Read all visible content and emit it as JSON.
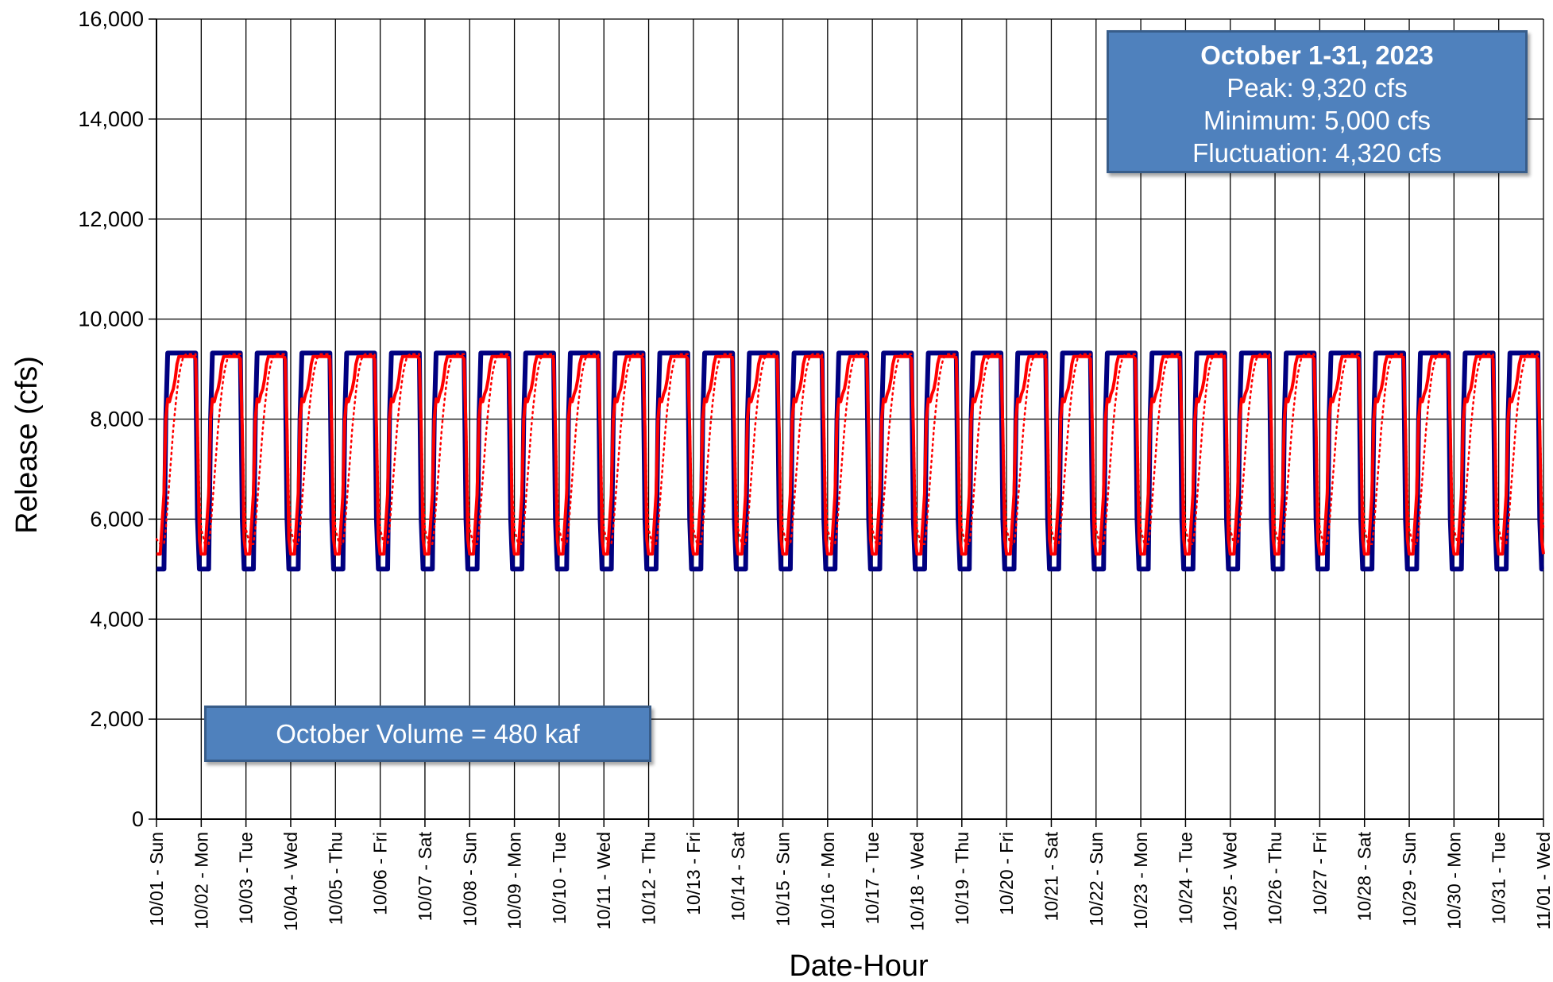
{
  "chart_data": {
    "type": "line",
    "xlabel": "Date-Hour",
    "ylabel": "Release (cfs)",
    "ylim": [
      0,
      16000
    ],
    "y_ticks": [
      "0",
      "2,000",
      "4,000",
      "6,000",
      "8,000",
      "10,000",
      "12,000",
      "14,000",
      "16,000"
    ],
    "x_tick_labels": [
      "10/01 - Sun",
      "10/02 - Mon",
      "10/03 - Tue",
      "10/04 - Wed",
      "10/05 - Thu",
      "10/06 - Fri",
      "10/07 - Sat",
      "10/08 - Sun",
      "10/09 - Mon",
      "10/10 - Tue",
      "10/11 - Wed",
      "10/12 - Thu",
      "10/13 - Fri",
      "10/14 - Sat",
      "10/15 - Sun",
      "10/16 - Mon",
      "10/17 - Tue",
      "10/18 - Wed",
      "10/19 - Thu",
      "10/20 - Fri",
      "10/21 - Sat",
      "10/22 - Sun",
      "10/23 - Mon",
      "10/24 - Tue",
      "10/25 - Wed",
      "10/26 - Thu",
      "10/27 - Fri",
      "10/28 - Sat",
      "10/29 - Sun",
      "10/30 - Mon",
      "10/31 - Tue",
      "11/01 - Wed"
    ],
    "grid": true,
    "daily_pattern_hours": [
      0,
      2,
      4,
      5,
      6,
      7,
      8,
      9,
      10,
      11,
      12,
      13,
      14,
      15,
      16,
      17,
      18,
      19,
      20,
      21,
      22,
      23,
      24
    ],
    "series": [
      {
        "color": "#000080",
        "style": "solid",
        "daily_values": [
          5000,
          5000,
          5000,
          8000,
          9320,
          9320,
          9320,
          9320,
          9320,
          9320,
          9320,
          9320,
          9320,
          9320,
          9320,
          9320,
          9320,
          9320,
          9320,
          9320,
          6000,
          5000,
          5000
        ]
      },
      {
        "color": "#ff0000",
        "style": "solid",
        "daily_values": [
          5300,
          5300,
          6500,
          8000,
          8400,
          8350,
          8500,
          8600,
          8800,
          9100,
          9250,
          9250,
          9250,
          9250,
          9250,
          9250,
          9250,
          9250,
          9250,
          9200,
          7800,
          5600,
          5300
        ]
      },
      {
        "color": "#ff0000",
        "style": "dotted",
        "daily_values": [
          5600,
          5500,
          5500,
          5800,
          6300,
          6800,
          7300,
          7800,
          8200,
          8550,
          8850,
          9050,
          9200,
          9270,
          9300,
          9300,
          9300,
          9300,
          9300,
          9300,
          8200,
          6500,
          5800
        ]
      }
    ]
  },
  "summary_box": {
    "title": "October 1-31, 2023",
    "peak": "Peak: 9,320 cfs",
    "minimum": "Minimum: 5,000 cfs",
    "fluctuation": "Fluctuation: 4,320 cfs"
  },
  "volume_box": {
    "text": "October Volume = 480 kaf"
  }
}
